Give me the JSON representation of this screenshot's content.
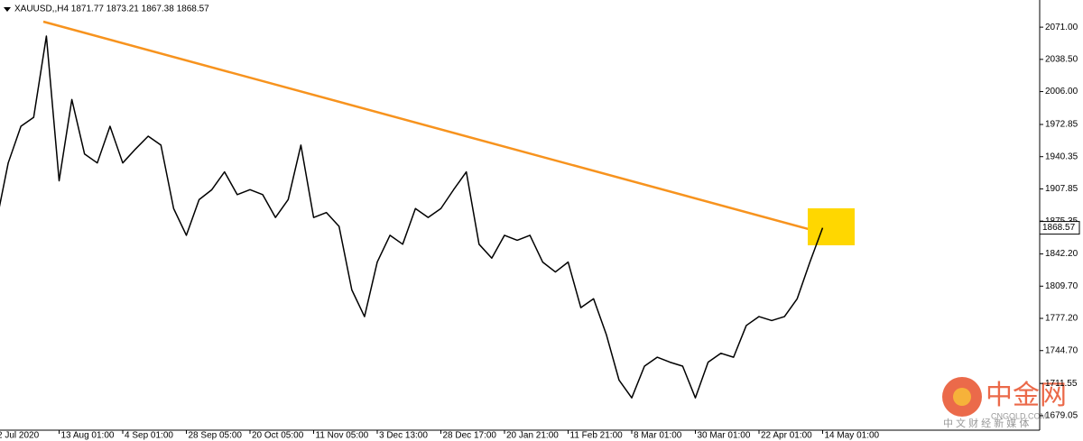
{
  "chart_data": {
    "type": "line",
    "title": "XAUUSD,,H4  1871.77 1873.21 1867.38 1868.57",
    "categories": [
      "2 Jul 2020",
      null,
      null,
      null,
      null,
      "13 Aug 01:00",
      null,
      null,
      null,
      null,
      "4 Sep 01:00",
      null,
      null,
      null,
      null,
      "28 Sep 05:00",
      null,
      null,
      null,
      null,
      "20 Oct 05:00",
      null,
      null,
      null,
      null,
      "11 Nov 05:00",
      null,
      null,
      null,
      null,
      "3 Dec 13:00",
      null,
      null,
      null,
      null,
      "28 Dec 17:00",
      null,
      null,
      null,
      null,
      "20 Jan 21:00",
      null,
      null,
      null,
      null,
      "11 Feb 21:00",
      null,
      null,
      null,
      null,
      "8 Mar 01:00",
      null,
      null,
      null,
      null,
      "30 Mar 01:00",
      null,
      null,
      null,
      null,
      "22 Apr 01:00",
      null,
      null,
      null,
      null,
      "14 May 01:00"
    ],
    "values": [
      1870,
      1934,
      1971,
      1980,
      2062,
      1916,
      1998,
      1943,
      1934,
      1971,
      1934,
      1948,
      1961,
      1952,
      1888,
      1861,
      1897,
      1907,
      1925,
      1902,
      1907,
      1902,
      1879,
      1897,
      1952,
      1879,
      1884,
      1870,
      1806,
      1779,
      1834,
      1861,
      1852,
      1888,
      1879,
      1888,
      1907,
      1925,
      1852,
      1838,
      1861,
      1856,
      1861,
      1834,
      1824,
      1834,
      1788,
      1797,
      1761,
      1715,
      1697,
      1729,
      1738,
      1733,
      1729,
      1697,
      1733,
      1742,
      1738,
      1770,
      1779,
      1775,
      1779,
      1797,
      1834,
      1868.57
    ],
    "color": "#000000",
    "ylim": [
      1664.4,
      2098.4
    ],
    "yticks": [
      {
        "value": 2071,
        "label": "2071.00"
      },
      {
        "value": 2038.5,
        "label": "2038.50"
      },
      {
        "value": 2006,
        "label": "2006.00"
      },
      1972.85,
      1940.35,
      1907.85,
      1875.35,
      {
        "value": 1842.2,
        "label": "1842.20"
      },
      {
        "value": 1809.7,
        "label": "1809.70"
      },
      {
        "value": 1777.2,
        "label": "1777.20"
      },
      {
        "value": 1744.7,
        "label": "1744.70"
      },
      1711.55,
      1679.05
    ],
    "grid": false,
    "last_price": 1868.57,
    "watermark": {
      "name": "中金网",
      "domain": "CNGOLD.COM",
      "tagline": "中 文 财 经 新 媒 体"
    }
  }
}
